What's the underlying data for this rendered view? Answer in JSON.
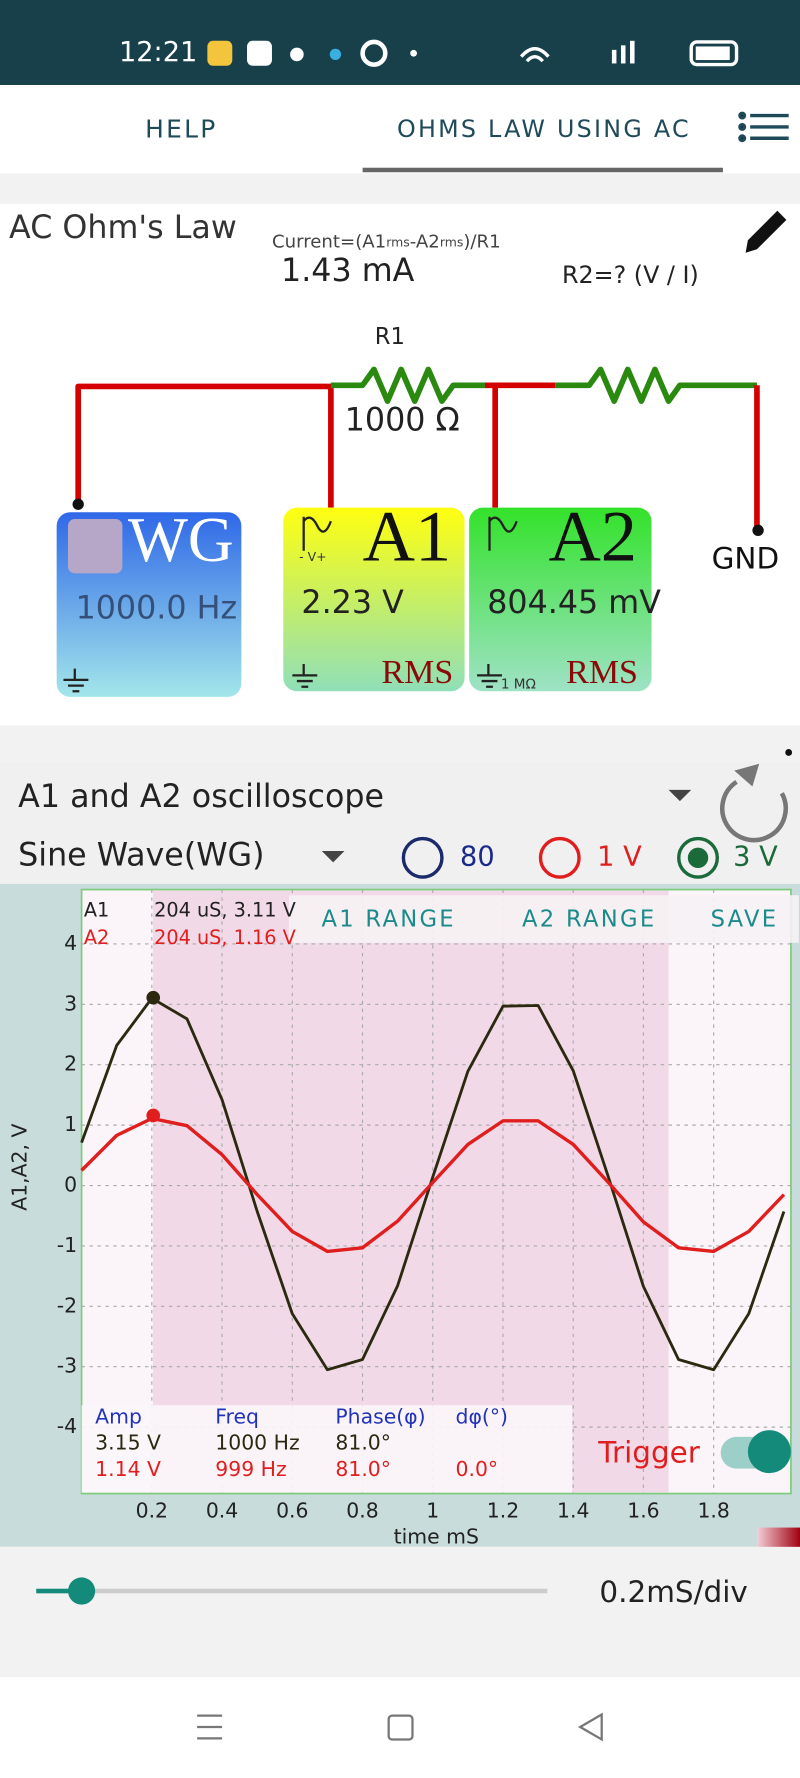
{
  "status_bar": {
    "time": "12:21"
  },
  "tabs": [
    "HELP",
    "OHMS LAW USING AC"
  ],
  "circuit": {
    "title": "AC Ohm's Law",
    "current_formula": [
      "Current=(A1",
      "rms",
      "-A2",
      "rms",
      ")/R1"
    ],
    "current_value": "1.43 mA",
    "r2_formula": "R2=?   (V / I)",
    "r1_label": "R1",
    "r1_value": "1000 Ω",
    "wg": {
      "label": "WG",
      "frequency": "1000.0 Hz"
    },
    "a1": {
      "label": "A1",
      "pin": "- V+",
      "value": "2.23 V",
      "mode": "RMS"
    },
    "a2": {
      "label": "A2",
      "value": "804.45 mV",
      "mode": "RMS",
      "impedance": "1 MΩ"
    },
    "gnd": "GND"
  },
  "scope": {
    "title": "A1 and A2 oscilloscope",
    "source": "Sine Wave(WG)",
    "ranges": [
      "80",
      "1 V",
      "3 V"
    ],
    "buttons": [
      "A1 RANGE",
      "A2 RANGE",
      "SAVE"
    ],
    "readout": [
      [
        "A1",
        "204 uS, 3.11 V"
      ],
      [
        "A2",
        "204 uS, 1.16 V"
      ]
    ],
    "table": {
      "headers": [
        "Amp",
        "Freq",
        "Phase(φ)",
        "dφ(°)"
      ],
      "rows": [
        [
          "3.15 V",
          "1000 Hz",
          "81.0°"
        ],
        [
          "1.14 V",
          "999 Hz",
          "81.0°",
          "0.0°"
        ]
      ]
    },
    "trigger": "Trigger",
    "chart": {
      "type": "line",
      "x_label": "time mS",
      "y_label": "A1,A2, V",
      "x": [
        0,
        0.1,
        0.2,
        0.3,
        0.4,
        0.5,
        0.6,
        0.7,
        0.8,
        0.9,
        1.0,
        1.1,
        1.2,
        1.3,
        1.4,
        1.5,
        1.6,
        1.7,
        1.8,
        1.9,
        2.0
      ],
      "series": [
        {
          "name": "A1",
          "color": "#2b2a10",
          "values": [
            0.71,
            2.32,
            3.1,
            2.76,
            1.42,
            -0.43,
            -2.12,
            -3.05,
            -2.88,
            -1.66,
            0.14,
            1.89,
            2.97,
            2.98,
            1.9,
            0.14,
            -1.67,
            -2.88,
            -3.05,
            -2.12,
            -0.43
          ]
        },
        {
          "name": "A2",
          "color": "#e01e1e",
          "values": [
            0.25,
            0.83,
            1.11,
            0.99,
            0.51,
            -0.15,
            -0.76,
            -1.09,
            -1.03,
            -0.59,
            0.05,
            0.68,
            1.07,
            1.07,
            0.68,
            0.05,
            -0.6,
            -1.03,
            -1.09,
            -0.76,
            -0.15
          ]
        }
      ],
      "cursor": {
        "x": 0.204,
        "values": [
          3.11,
          1.16
        ]
      },
      "xlim": [
        0,
        2.02
      ],
      "ylim": [
        -5.1,
        4.9
      ],
      "xticks": [
        0.2,
        0.4,
        0.6,
        0.8,
        1,
        1.2,
        1.4,
        1.6,
        1.8
      ],
      "yticks": [
        -4,
        -3,
        -2,
        -1,
        0,
        1,
        2,
        3,
        4
      ],
      "grid": true
    },
    "timebase": "0.2mS/div"
  }
}
